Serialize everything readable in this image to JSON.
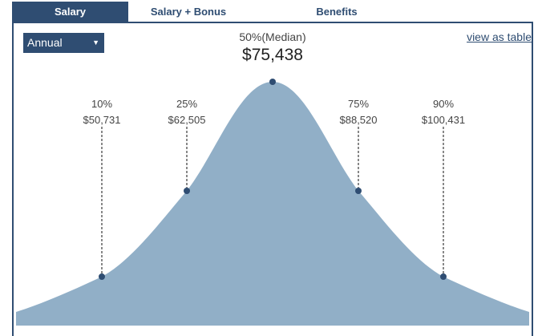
{
  "tabs": {
    "salary": "Salary",
    "salary_bonus": "Salary + Bonus",
    "benefits": "Benefits"
  },
  "period_select": {
    "value": "Annual"
  },
  "view_table_link": "view as table",
  "median": {
    "label": "50%(Median)",
    "value": "$75,438"
  },
  "percentiles": [
    {
      "pct": "10%",
      "value": "$50,731"
    },
    {
      "pct": "25%",
      "value": "$62,505"
    },
    {
      "pct": "75%",
      "value": "$88,520"
    },
    {
      "pct": "90%",
      "value": "$100,431"
    }
  ],
  "colors": {
    "accent": "#2f4d72",
    "curve_fill": "#91afc7",
    "marker": "#2f4d72"
  }
}
